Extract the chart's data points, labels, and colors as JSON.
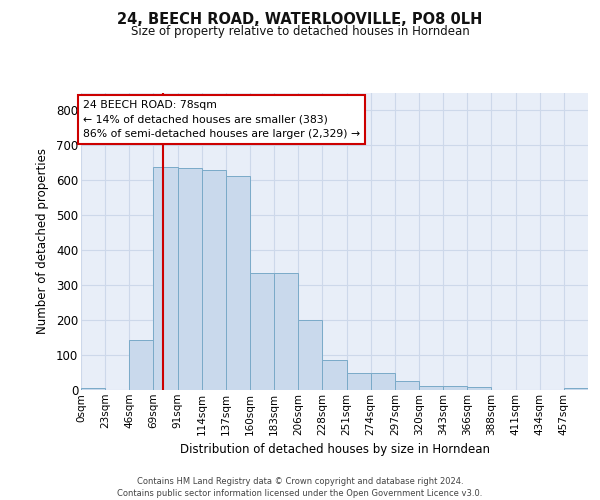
{
  "title": "24, BEECH ROAD, WATERLOOVILLE, PO8 0LH",
  "subtitle": "Size of property relative to detached houses in Horndean",
  "xlabel": "Distribution of detached houses by size in Horndean",
  "ylabel": "Number of detached properties",
  "bar_heights": [
    5,
    0,
    143,
    638,
    635,
    630,
    612,
    335,
    335,
    200,
    85,
    48,
    48,
    26,
    12,
    12,
    10,
    0,
    0,
    0,
    5
  ],
  "bin_labels": [
    "0sqm",
    "23sqm",
    "46sqm",
    "69sqm",
    "91sqm",
    "114sqm",
    "137sqm",
    "160sqm",
    "183sqm",
    "206sqm",
    "228sqm",
    "251sqm",
    "274sqm",
    "297sqm",
    "320sqm",
    "343sqm",
    "366sqm",
    "388sqm",
    "411sqm",
    "434sqm",
    "457sqm"
  ],
  "bin_width": 23,
  "bar_color": "#c9d9ec",
  "bar_edge_color": "#7aaac8",
  "grid_color": "#cdd8ea",
  "bg_color": "#e8eef8",
  "property_sqm": 78,
  "property_line_color": "#cc0000",
  "annotation_text": "24 BEECH ROAD: 78sqm\n← 14% of detached houses are smaller (383)\n86% of semi-detached houses are larger (2,329) →",
  "annotation_box_facecolor": "#ffffff",
  "annotation_box_edgecolor": "#cc0000",
  "ylim": [
    0,
    850
  ],
  "yticks": [
    0,
    100,
    200,
    300,
    400,
    500,
    600,
    700,
    800
  ],
  "footer": "Contains HM Land Registry data © Crown copyright and database right 2024.\nContains public sector information licensed under the Open Government Licence v3.0."
}
